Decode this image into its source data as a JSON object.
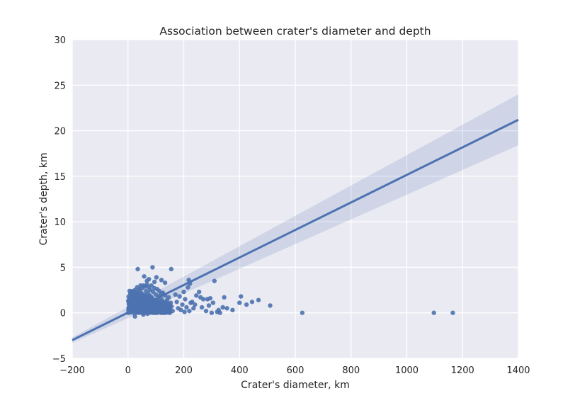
{
  "chart_data": {
    "type": "scatter",
    "title": "Association between crater's diameter and depth",
    "xlabel": "Crater's diameter, km",
    "ylabel": "Crater's depth, km",
    "xlim": [
      -200,
      1400
    ],
    "ylim": [
      -5,
      30
    ],
    "xticks": [
      -200,
      0,
      200,
      400,
      600,
      800,
      1000,
      1200,
      1400
    ],
    "yticks": [
      -5,
      0,
      5,
      10,
      15,
      20,
      25,
      30
    ],
    "grid": true,
    "colors": {
      "background": "#EAEAF2",
      "grid": "#FFFFFF",
      "points": "#4C72B0",
      "line": "#4C72B0"
    },
    "series": [
      {
        "kind": "scatter",
        "points": [
          [
            2,
            0.3
          ],
          [
            3,
            0.6
          ],
          [
            4,
            1.0
          ],
          [
            5,
            1.2
          ],
          [
            6,
            0.4
          ],
          [
            7,
            1.5
          ],
          [
            8,
            0.8
          ],
          [
            9,
            1.1
          ],
          [
            10,
            1.6
          ],
          [
            11,
            0.2
          ],
          [
            12,
            1.8
          ],
          [
            14,
            0.9
          ],
          [
            15,
            1.3
          ],
          [
            16,
            2.0
          ],
          [
            18,
            0.5
          ],
          [
            20,
            1.7
          ],
          [
            22,
            2.2
          ],
          [
            24,
            1.0
          ],
          [
            25,
            2.5
          ],
          [
            27,
            1.4
          ],
          [
            28,
            0.3
          ],
          [
            30,
            2.0
          ],
          [
            32,
            1.6
          ],
          [
            33,
            2.8
          ],
          [
            35,
            0.8
          ],
          [
            36,
            1.9
          ],
          [
            38,
            2.4
          ],
          [
            40,
            1.2
          ],
          [
            42,
            2.6
          ],
          [
            44,
            0.5
          ],
          [
            45,
            3.0
          ],
          [
            46,
            1.8
          ],
          [
            48,
            2.2
          ],
          [
            50,
            0.9
          ],
          [
            52,
            2.7
          ],
          [
            54,
            1.5
          ],
          [
            55,
            3.0
          ],
          [
            57,
            0.4
          ],
          [
            58,
            2.0
          ],
          [
            60,
            1.2
          ],
          [
            62,
            2.9
          ],
          [
            64,
            0.7
          ],
          [
            65,
            2.4
          ],
          [
            67,
            1.6
          ],
          [
            68,
            3.1
          ],
          [
            70,
            0.2
          ],
          [
            72,
            2.1
          ],
          [
            74,
            1.3
          ],
          [
            75,
            2.8
          ],
          [
            77,
            0.6
          ],
          [
            78,
            1.9
          ],
          [
            80,
            2.5
          ],
          [
            82,
            1.0
          ],
          [
            84,
            3.0
          ],
          [
            85,
            1.7
          ],
          [
            88,
            0.4
          ],
          [
            90,
            2.3
          ],
          [
            92,
            1.4
          ],
          [
            95,
            2.7
          ],
          [
            98,
            0.8
          ],
          [
            100,
            2.0
          ],
          [
            102,
            1.1
          ],
          [
            105,
            2.6
          ],
          [
            108,
            0.5
          ],
          [
            110,
            1.8
          ],
          [
            112,
            2.4
          ],
          [
            115,
            0.9
          ],
          [
            118,
            2.1
          ],
          [
            120,
            1.5
          ],
          [
            122,
            0.3
          ],
          [
            125,
            2.2
          ],
          [
            128,
            1.2
          ],
          [
            130,
            0.6
          ],
          [
            133,
            1.9
          ],
          [
            136,
            0.2
          ],
          [
            140,
            1.4
          ],
          [
            143,
            0.8
          ],
          [
            146,
            1.7
          ],
          [
            150,
            0.4
          ],
          [
            153,
            1.1
          ],
          [
            156,
            0.7
          ],
          [
            160,
            0.2
          ],
          [
            40,
            0.0
          ],
          [
            60,
            0.0
          ],
          [
            80,
            0.1
          ],
          [
            100,
            0.0
          ],
          [
            120,
            0.0
          ],
          [
            140,
            0.1
          ],
          [
            150,
            0.0
          ],
          [
            90,
            0.0
          ],
          [
            70,
            -0.1
          ],
          [
            50,
            0.1
          ],
          [
            110,
            0.1
          ],
          [
            130,
            0.0
          ],
          [
            20,
            0.0
          ],
          [
            30,
            0.1
          ],
          [
            35,
            4.8
          ],
          [
            58,
            4.0
          ],
          [
            88,
            5.0
          ],
          [
            155,
            4.8
          ],
          [
            75,
            3.7
          ],
          [
            102,
            3.9
          ],
          [
            120,
            3.6
          ],
          [
            133,
            3.3
          ],
          [
            68,
            3.5
          ],
          [
            95,
            3.4
          ],
          [
            25,
            -0.4
          ],
          [
            55,
            -0.2
          ],
          [
            170,
            2.0
          ],
          [
            175,
            1.2
          ],
          [
            180,
            0.5
          ],
          [
            185,
            1.8
          ],
          [
            190,
            0.3
          ],
          [
            195,
            0.9
          ],
          [
            200,
            2.3
          ],
          [
            203,
            0.1
          ],
          [
            205,
            1.5
          ],
          [
            210,
            0.6
          ],
          [
            215,
            2.8
          ],
          [
            218,
            3.6
          ],
          [
            220,
            0.2
          ],
          [
            222,
            3.2
          ],
          [
            225,
            1.1
          ],
          [
            230,
            1.2
          ],
          [
            235,
            0.5
          ],
          [
            240,
            0.9
          ],
          [
            245,
            1.9
          ],
          [
            255,
            2.3
          ],
          [
            260,
            1.7
          ],
          [
            265,
            0.6
          ],
          [
            270,
            1.5
          ],
          [
            280,
            0.2
          ],
          [
            285,
            1.5
          ],
          [
            290,
            0.8
          ],
          [
            295,
            1.6
          ],
          [
            300,
            0.0
          ],
          [
            305,
            1.1
          ],
          [
            310,
            3.5
          ],
          [
            320,
            0.1
          ],
          [
            325,
            0.3
          ],
          [
            330,
            0.0
          ],
          [
            340,
            0.6
          ],
          [
            345,
            1.7
          ],
          [
            355,
            0.5
          ],
          [
            375,
            0.3
          ],
          [
            400,
            1.1
          ],
          [
            405,
            1.8
          ],
          [
            425,
            0.9
          ],
          [
            445,
            1.2
          ],
          [
            468,
            1.4
          ],
          [
            510,
            0.8
          ],
          [
            625,
            0.0
          ],
          [
            1097,
            0.0
          ],
          [
            1165,
            0.0
          ]
        ]
      },
      {
        "kind": "regression",
        "x": [
          -200,
          1400
        ],
        "y": [
          -3.0,
          21.2
        ],
        "ci_upper": [
          -2.7,
          24.0
        ],
        "ci_lower": [
          -3.3,
          18.4
        ]
      }
    ]
  }
}
